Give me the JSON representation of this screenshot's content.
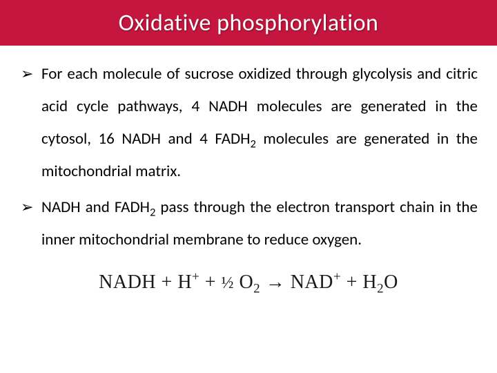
{
  "header": {
    "title": "Oxidative phosphorylation",
    "background_color": "#c5163f",
    "title_color": "#ffffff",
    "title_fontsize": 34
  },
  "body": {
    "text_color": "#000000",
    "fontsize": 23,
    "line_height": 2.05,
    "bullet_glyph": "➢",
    "bullets": [
      {
        "segments": [
          "For each molecule of sucrose oxidized through glycolysis and citric acid cycle pathways, 4 NADH molecules are generated in the cytosol, 16 NADH and  4 FADH",
          "2",
          " molecules are generated in the mitochondrial matrix."
        ]
      },
      {
        "segments": [
          "NADH and FADH",
          "2",
          " pass through the electron transport chain in the inner mitochondrial membrane to reduce oxygen."
        ]
      }
    ]
  },
  "equation": {
    "font_family": "Times New Roman",
    "fontsize": 28,
    "color": "#1a1a1a",
    "parts": {
      "p1": "NADH + H",
      "sup1": "+",
      "p2": " + ",
      "frac": "½",
      "p3": " O",
      "sub1": "2",
      "arrow": " → ",
      "p4": "NAD",
      "sup2": "+",
      "p5": " + H",
      "sub2": "2",
      "p6": "O"
    }
  }
}
